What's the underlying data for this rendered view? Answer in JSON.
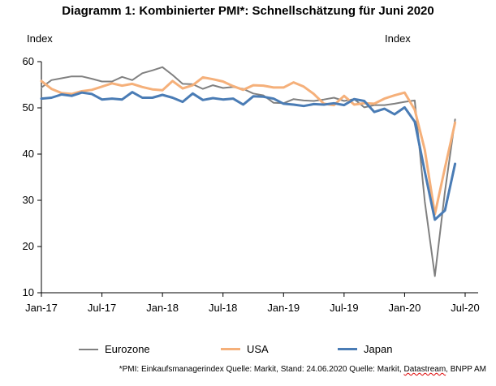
{
  "chart_data": {
    "type": "line",
    "title": "Diagramm 1: Kombinierter PMI*: Schnellschätzung für Juni 2020",
    "ylabel_left": "Index",
    "ylabel_right": "Index",
    "ylim": [
      10,
      60
    ],
    "yticks": [
      "10",
      "20",
      "30",
      "40",
      "50",
      "60"
    ],
    "xlim": [
      0,
      42
    ],
    "xticks": [
      {
        "pos": 0,
        "label": "Jan-17"
      },
      {
        "pos": 6,
        "label": "Jul-17"
      },
      {
        "pos": 12,
        "label": "Jan-18"
      },
      {
        "pos": 18,
        "label": "Jul-18"
      },
      {
        "pos": 24,
        "label": "Jan-19"
      },
      {
        "pos": 30,
        "label": "Jul-19"
      },
      {
        "pos": 36,
        "label": "Jan-20"
      },
      {
        "pos": 42,
        "label": "Jul-20"
      }
    ],
    "grid": false,
    "legend_position": "bottom",
    "series": [
      {
        "name": "Eurozone",
        "color": "#808080",
        "width": 2,
        "values": [
          54.4,
          56.0,
          56.4,
          56.8,
          56.8,
          56.3,
          55.7,
          55.7,
          56.7,
          56.0,
          57.5,
          58.1,
          58.8,
          57.1,
          55.2,
          55.1,
          54.1,
          54.9,
          54.3,
          54.5,
          54.1,
          53.1,
          52.7,
          51.1,
          51.0,
          51.9,
          51.6,
          51.5,
          51.8,
          52.2,
          51.5,
          51.9,
          50.1,
          50.6,
          50.6,
          50.9,
          51.3,
          51.6,
          29.7,
          13.6,
          31.9,
          47.5
        ]
      },
      {
        "name": "USA",
        "color": "#f5b07a",
        "width": 3,
        "values": [
          55.8,
          54.1,
          53.2,
          53.0,
          53.6,
          53.9,
          54.6,
          55.3,
          54.8,
          55.2,
          54.5,
          54.0,
          53.8,
          55.8,
          54.2,
          54.9,
          56.6,
          56.2,
          55.7,
          54.7,
          53.9,
          54.9,
          54.8,
          54.4,
          54.4,
          55.5,
          54.6,
          53.0,
          50.9,
          50.6,
          52.6,
          50.7,
          51.0,
          50.9,
          52.0,
          52.7,
          53.3,
          49.6,
          40.9,
          27.0,
          37.0,
          46.8
        ]
      },
      {
        "name": "Japan",
        "color": "#4a7cb5",
        "width": 3,
        "values": [
          52.0,
          52.2,
          52.9,
          52.6,
          53.3,
          53.0,
          51.8,
          52.0,
          51.8,
          53.4,
          52.2,
          52.2,
          52.8,
          52.2,
          51.3,
          53.1,
          51.7,
          52.1,
          51.8,
          52.0,
          50.7,
          52.5,
          52.4,
          52.0,
          50.9,
          50.7,
          50.4,
          50.8,
          50.7,
          51.0,
          50.6,
          51.9,
          51.5,
          49.1,
          49.8,
          48.6,
          50.1,
          47.0,
          36.2,
          25.8,
          27.8,
          37.9
        ]
      }
    ]
  },
  "footnote": {
    "text": "*PMI: Einkaufsmanagerindex   Quelle: Markit, Stand: 24.06.2020  Quelle: Markit, ",
    "underlined": "Datastream",
    "tail": ", BNPP AM"
  }
}
